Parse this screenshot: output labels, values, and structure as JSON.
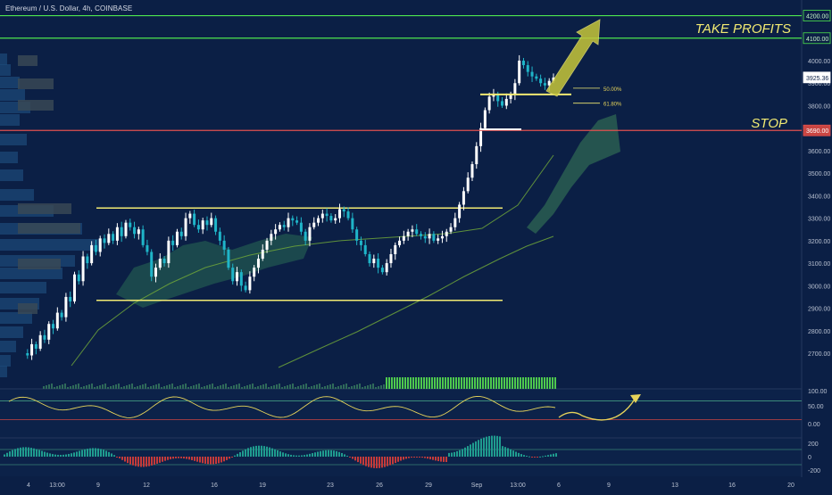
{
  "title": "Ethereum / U.S. Dollar, 4h, COINBASE",
  "colors": {
    "background": "#0b1f45",
    "bull": "#ffffff",
    "bear": "#1fb5c9",
    "range_line": "#f2ea72",
    "target_line": "#4ee64e",
    "stop_line": "#e2514f",
    "arrow": "#c6c63a",
    "ma_line": "#6ea63a",
    "oscillator": "#e6d35a",
    "hist_pos": "#1f9c8f",
    "hist_neg": "#c53a3a"
  },
  "annotations": {
    "take_profits": "TAKE PROFITS",
    "stop": "STOP",
    "fib_50": "50.00%",
    "fib_618": "61.80%"
  },
  "price_axis": {
    "ticks": [
      "4000.00",
      "3900.00",
      "3800.00",
      "3700.00",
      "3600.00",
      "3500.00",
      "3400.00",
      "3300.00",
      "3200.00",
      "3100.00",
      "3000.00",
      "2900.00",
      "2800.00",
      "2700.00"
    ],
    "tags": [
      {
        "label": "4200.00",
        "kind": "target"
      },
      {
        "label": "4100.00",
        "kind": "target"
      },
      {
        "label": "3925.36",
        "kind": "last"
      },
      {
        "label": "3690.00",
        "kind": "stop"
      }
    ]
  },
  "oscillator_axis": {
    "ticks": [
      "100.00",
      "50.00",
      "0.00"
    ]
  },
  "histogram_axis": {
    "ticks": [
      "200",
      "0",
      "-200"
    ]
  },
  "time_axis": {
    "ticks": [
      "4",
      "13:00",
      "9",
      "12",
      "16",
      "19",
      "23",
      "26",
      "29",
      "Sep",
      "13:00",
      "6",
      "9",
      "13",
      "16",
      "20"
    ]
  },
  "chart_data": {
    "type": "candlestick",
    "instrument": "Ethereum / U.S. Dollar",
    "interval": "4h",
    "exchange": "COINBASE",
    "ylim": [
      2650,
      4250
    ],
    "levels": {
      "take_profit_1": 4200,
      "take_profit_2": 4100,
      "stop": 3690,
      "range_top": 3345,
      "range_bottom": 2935,
      "last_price": 3925.36
    },
    "price_path": [
      2700,
      2690,
      2740,
      2720,
      2780,
      2760,
      2830,
      2810,
      2880,
      2860,
      2950,
      2930,
      3050,
      3020,
      3130,
      3100,
      3180,
      3150,
      3210,
      3190,
      3230,
      3200,
      3260,
      3220,
      3280,
      3260,
      3230,
      3250,
      3180,
      3150,
      3040,
      3080,
      3120,
      3100,
      3200,
      3180,
      3240,
      3220,
      3300,
      3320,
      3270,
      3250,
      3290,
      3270,
      3300,
      3240,
      3200,
      3160,
      3080,
      3020,
      3060,
      3000,
      2980,
      3040,
      3080,
      3120,
      3160,
      3200,
      3230,
      3250,
      3270,
      3260,
      3300,
      3290,
      3280,
      3240,
      3200,
      3260,
      3280,
      3300,
      3320,
      3310,
      3290,
      3300,
      3340,
      3330,
      3300,
      3250,
      3200,
      3180,
      3140,
      3100,
      3120,
      3080,
      3060,
      3100,
      3140,
      3180,
      3200,
      3220,
      3240,
      3250,
      3230,
      3220,
      3210,
      3230,
      3200,
      3210,
      3220,
      3240,
      3260,
      3300,
      3360,
      3420,
      3480,
      3540,
      3620,
      3700,
      3780,
      3840,
      3850,
      3820,
      3800,
      3830,
      3850,
      3900,
      4000,
      3980,
      3950,
      3930,
      3920,
      3900,
      3890,
      3910,
      3925
    ],
    "ma_fast": [
      [
        3005,
        3200
      ],
      [
        3460,
        3240
      ],
      [
        3620,
        3360
      ],
      [
        3730,
        3600
      ]
    ],
    "ma_slow": [
      [
        2820,
        2800
      ],
      [
        3180,
        3000
      ],
      [
        3460,
        3120
      ],
      [
        3730,
        3240
      ]
    ],
    "fib_levels": [
      {
        "label": "50.00%",
        "price": 3850
      },
      {
        "label": "61.80%",
        "price": 3815
      }
    ],
    "oscillator": {
      "ylim": [
        -10,
        110
      ],
      "bands": [
        70,
        30
      ]
    },
    "histogram": {
      "ylim": [
        -200,
        200
      ]
    }
  }
}
